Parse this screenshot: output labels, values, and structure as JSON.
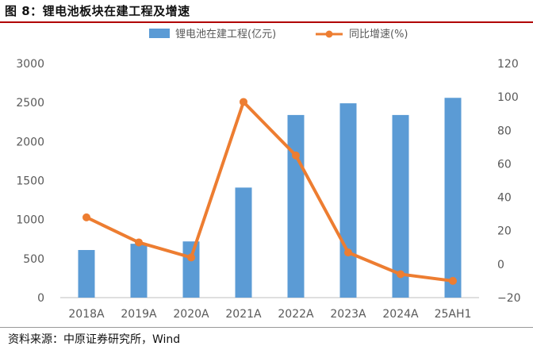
{
  "figure_title": "图 8：锂电池板块在建工程及增速",
  "source": "资料来源：中原证券研究所，Wind",
  "colors": {
    "bar": "#5b9bd5",
    "line": "#ed7d31",
    "axis": "#bfbfbf",
    "text": "#595959"
  },
  "chart_data": {
    "type": "bar+line",
    "categories": [
      "2018A",
      "2019A",
      "2020A",
      "2021A",
      "2022A",
      "2023A",
      "2024A",
      "25AH1"
    ],
    "series": [
      {
        "name": "锂电池在建工程(亿元)",
        "type": "bar",
        "axis": "left",
        "values": [
          610,
          690,
          720,
          1410,
          2340,
          2490,
          2340,
          2560
        ]
      },
      {
        "name": "同比增速(%)",
        "type": "line",
        "axis": "right",
        "values": [
          28,
          13,
          4,
          97,
          65,
          7,
          -6,
          -10
        ]
      }
    ],
    "y_left": {
      "min": 0,
      "max": 3000,
      "ticks": [
        "0",
        "500",
        "1000",
        "1500",
        "2000",
        "2500",
        "3000"
      ]
    },
    "y_right": {
      "min": -20,
      "max": 120,
      "ticks": [
        "−20",
        "0",
        "20",
        "40",
        "60",
        "80",
        "100",
        "120"
      ]
    },
    "legend_position": "top-center",
    "grid": false
  }
}
